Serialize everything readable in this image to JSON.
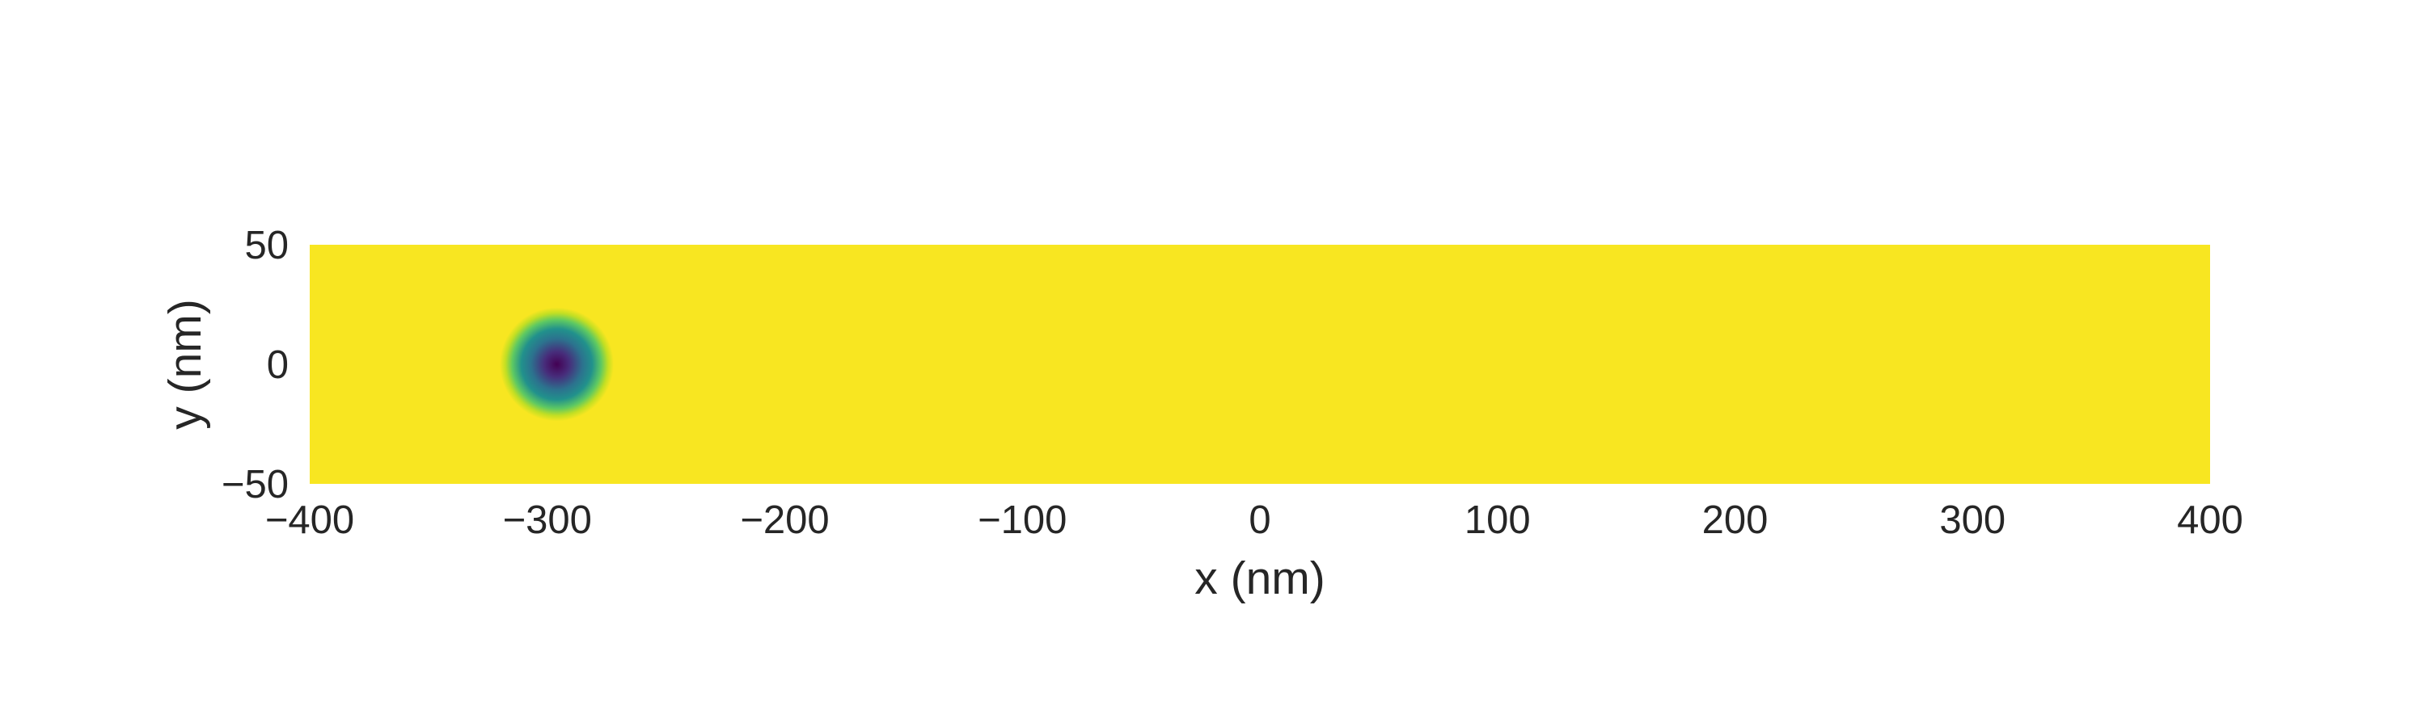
{
  "chart_data": {
    "type": "heatmap",
    "title": "",
    "xlabel": "x (nm)",
    "ylabel": "y (nm)",
    "xlim": [
      -400,
      400
    ],
    "ylim": [
      -50,
      50
    ],
    "xticks": [
      -400,
      -300,
      -200,
      -100,
      0,
      100,
      200,
      300,
      400
    ],
    "yticks": [
      -50,
      0,
      50
    ],
    "xtick_labels": [
      "−400",
      "−300",
      "−200",
      "−100",
      "0",
      "100",
      "200",
      "300",
      "400"
    ],
    "ytick_labels": [
      "−50",
      "0",
      "50"
    ],
    "grid": false,
    "colormap": "viridis",
    "background_color": "#f8e621",
    "features": [
      {
        "kind": "circular-dip",
        "center": {
          "x": -296,
          "y": 0
        },
        "radius_nm": 12,
        "core_color": "#440154",
        "ring_color": "#21918c"
      }
    ]
  }
}
